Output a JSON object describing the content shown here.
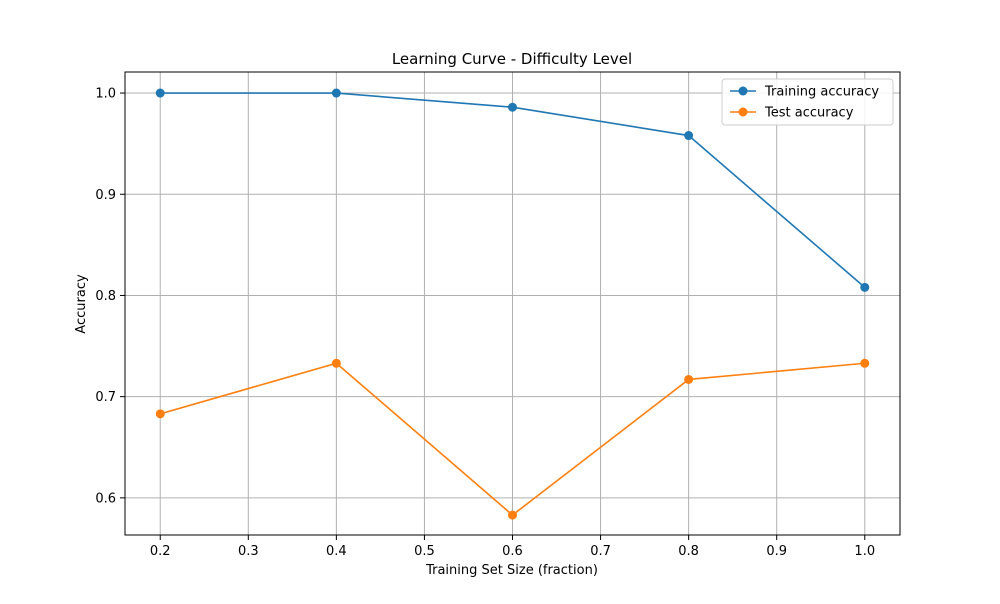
{
  "chart_data": {
    "type": "line",
    "title": "Learning Curve - Difficulty Level",
    "xlabel": "Training Set Size (fraction)",
    "ylabel": "Accuracy",
    "x": [
      0.2,
      0.4,
      0.6,
      0.8,
      1.0
    ],
    "xlim": [
      0.16,
      1.04
    ],
    "ylim": [
      0.5633,
      1.0208
    ],
    "xticks": [
      "0.2",
      "0.3",
      "0.4",
      "0.5",
      "0.6",
      "0.7",
      "0.8",
      "0.9",
      "1.0"
    ],
    "yticks": [
      "0.6",
      "0.7",
      "0.8",
      "0.9",
      "1.0"
    ],
    "grid": true,
    "legend_position": "upper-right",
    "series": [
      {
        "name": "Training accuracy",
        "color": "#1f77b4",
        "marker": "circle",
        "values": [
          1.0,
          1.0,
          0.986,
          0.958,
          0.808
        ]
      },
      {
        "name": "Test accuracy",
        "color": "#ff7f0e",
        "marker": "circle",
        "values": [
          0.683,
          0.733,
          0.583,
          0.717,
          0.733
        ]
      }
    ]
  }
}
